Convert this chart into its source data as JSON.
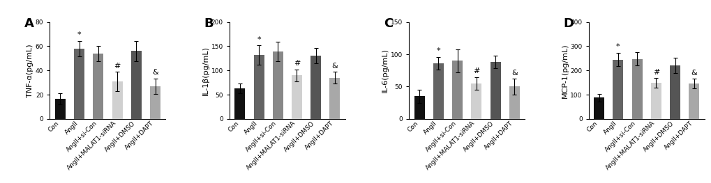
{
  "panels": [
    {
      "label": "A",
      "ylabel": "TNF-α(pg/mL)",
      "ylim": [
        0,
        80
      ],
      "yticks": [
        0,
        20,
        40,
        60,
        80
      ],
      "values": [
        16.5,
        58.0,
        54.0,
        31.0,
        56.0,
        27.0
      ],
      "errors": [
        4.5,
        6.5,
        6.5,
        8.0,
        8.5,
        6.5
      ],
      "colors": [
        "#111111",
        "#646464",
        "#888888",
        "#d0d0d0",
        "#555555",
        "#a8a8a8"
      ],
      "sig": [
        "",
        "*",
        "",
        "#",
        "",
        "&"
      ]
    },
    {
      "label": "B",
      "ylabel": "IL-1β(pg/mL)",
      "ylim": [
        0,
        200
      ],
      "yticks": [
        0,
        50,
        100,
        150,
        200
      ],
      "values": [
        63.0,
        132.0,
        139.0,
        90.0,
        130.0,
        85.0
      ],
      "errors": [
        10.0,
        20.0,
        20.0,
        12.0,
        16.0,
        12.0
      ],
      "colors": [
        "#111111",
        "#646464",
        "#888888",
        "#d0d0d0",
        "#555555",
        "#a8a8a8"
      ],
      "sig": [
        "",
        "*",
        "",
        "#",
        "",
        "&"
      ]
    },
    {
      "label": "C",
      "ylabel": "IL-6(pg/mL)",
      "ylim": [
        0,
        150
      ],
      "yticks": [
        0,
        50,
        100,
        150
      ],
      "values": [
        35.0,
        86.0,
        90.0,
        55.0,
        88.0,
        50.0
      ],
      "errors": [
        10.0,
        10.0,
        18.0,
        10.0,
        10.0,
        12.0
      ],
      "colors": [
        "#111111",
        "#646464",
        "#888888",
        "#d0d0d0",
        "#555555",
        "#a8a8a8"
      ],
      "sig": [
        "",
        "*",
        "",
        "#",
        "",
        "&"
      ]
    },
    {
      "label": "D",
      "ylabel": "MCP-1(pg/mL)",
      "ylim": [
        0,
        400
      ],
      "yticks": [
        0,
        100,
        200,
        300,
        400
      ],
      "values": [
        88.0,
        245.0,
        248.0,
        148.0,
        220.0,
        145.0
      ],
      "errors": [
        15.0,
        28.0,
        28.0,
        20.0,
        32.0,
        20.0
      ],
      "colors": [
        "#111111",
        "#646464",
        "#888888",
        "#d0d0d0",
        "#555555",
        "#a8a8a8"
      ],
      "sig": [
        "",
        "*",
        "",
        "#",
        "",
        "&"
      ]
    }
  ],
  "categories": [
    "Con",
    "AngII",
    "AngII+si-Con",
    "AngII+MALAT1-siRNA",
    "AngII+DMSO",
    "AngII+DAPT"
  ],
  "bar_width": 0.55,
  "figsize": [
    10.2,
    2.63
  ],
  "dpi": 100,
  "background_color": "#ffffff",
  "ylabel_fontsize": 8,
  "tick_fontsize": 6.5,
  "panel_label_fontsize": 13,
  "sig_fontsize": 8
}
